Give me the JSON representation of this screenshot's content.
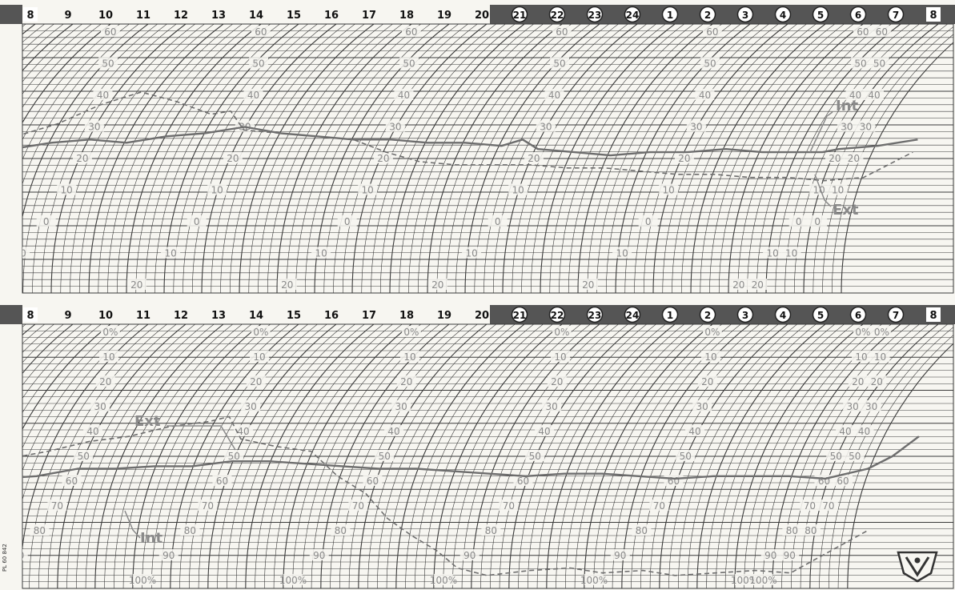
{
  "hours": [
    "8",
    "9",
    "10",
    "11",
    "12",
    "13",
    "14",
    "15",
    "16",
    "17",
    "18",
    "19",
    "20",
    "21",
    "22",
    "23",
    "24",
    "1",
    "2",
    "3",
    "4",
    "5",
    "6",
    "7",
    "8"
  ],
  "colors": {
    "paper": "#f7f6f1",
    "grid": "#3a3a3a",
    "band": "#555555",
    "trace_int": "#6e6e6e",
    "trace_ext": "#6e6e6e",
    "label": "#8a8a8a"
  },
  "footnote": "PL 60 842",
  "logo_icon": "shield-logo-icon",
  "chart_data": [
    {
      "type": "line",
      "scale_labels": [
        "60",
        "50",
        "40",
        "30",
        "20",
        "10",
        "0",
        "10",
        "20"
      ],
      "ylim": [
        -20,
        60
      ],
      "series": [
        {
          "name": "Int",
          "style": "solid",
          "points": [
            [
              0,
              23
            ],
            [
              1,
              25
            ],
            [
              2,
              26
            ],
            [
              3,
              25
            ],
            [
              4,
              27
            ],
            [
              5,
              28
            ],
            [
              6,
              30
            ],
            [
              7,
              28
            ],
            [
              8,
              27
            ],
            [
              9,
              26
            ],
            [
              10,
              26
            ],
            [
              11,
              25
            ],
            [
              12,
              25
            ],
            [
              13,
              24
            ],
            [
              13.5,
              26
            ],
            [
              14,
              23
            ],
            [
              15,
              22
            ],
            [
              16,
              21
            ],
            [
              17,
              22
            ],
            [
              18,
              22
            ],
            [
              19,
              23
            ],
            [
              20,
              22
            ],
            [
              21,
              22
            ],
            [
              21.6,
              22
            ],
            [
              22,
              23
            ],
            [
              23,
              24
            ],
            [
              24,
              26
            ]
          ]
        },
        {
          "name": "Ext",
          "style": "dashed",
          "points": [
            [
              0,
              27
            ],
            [
              1,
              31
            ],
            [
              2,
              37
            ],
            [
              3,
              41
            ],
            [
              4,
              38
            ],
            [
              5,
              34
            ],
            [
              5.5,
              35
            ],
            [
              6,
              29
            ],
            [
              7,
              28
            ],
            [
              8,
              27
            ],
            [
              9,
              26
            ],
            [
              10,
              22
            ],
            [
              11,
              19
            ],
            [
              12,
              18
            ],
            [
              13,
              18
            ],
            [
              14,
              18
            ],
            [
              15,
              17
            ],
            [
              16,
              17
            ],
            [
              17,
              16
            ],
            [
              18,
              15
            ],
            [
              19,
              15
            ],
            [
              20,
              14
            ],
            [
              21,
              14
            ],
            [
              22,
              13
            ],
            [
              23,
              14
            ],
            [
              24,
              22
            ]
          ]
        }
      ],
      "annotations": [
        "Int",
        "Ext"
      ]
    },
    {
      "type": "line",
      "scale_labels": [
        "0%",
        "10",
        "20",
        "30",
        "40",
        "50",
        "60",
        "70",
        "80",
        "90",
        "100%"
      ],
      "ylim": [
        0,
        100
      ],
      "series": [
        {
          "name": "Int",
          "style": "solid",
          "points": [
            [
              0,
              59
            ],
            [
              1,
              58
            ],
            [
              2,
              55
            ],
            [
              3,
              55
            ],
            [
              4,
              54
            ],
            [
              5,
              54
            ],
            [
              6,
              52
            ],
            [
              7,
              52
            ],
            [
              8,
              53
            ],
            [
              9,
              54
            ],
            [
              10,
              55
            ],
            [
              11,
              55
            ],
            [
              12,
              56
            ],
            [
              13,
              57
            ],
            [
              14,
              58
            ],
            [
              15,
              57
            ],
            [
              16,
              57
            ],
            [
              17,
              58
            ],
            [
              18,
              59
            ],
            [
              19,
              58
            ],
            [
              20,
              58
            ],
            [
              21,
              58
            ],
            [
              22,
              59
            ],
            [
              23,
              55
            ],
            [
              23.5,
              50
            ],
            [
              24,
              42
            ]
          ]
        },
        {
          "name": "Ext",
          "style": "dashed",
          "points": [
            [
              0,
              51
            ],
            [
              1,
              48
            ],
            [
              2,
              44
            ],
            [
              3,
              42
            ],
            [
              4,
              38
            ],
            [
              5,
              36
            ],
            [
              5.5,
              34
            ],
            [
              6,
              43
            ],
            [
              7,
              46
            ],
            [
              8,
              48
            ],
            [
              9,
              58
            ],
            [
              10,
              65
            ],
            [
              11,
              75
            ],
            [
              12,
              82
            ],
            [
              13,
              88
            ],
            [
              14,
              95
            ],
            [
              15,
              98
            ],
            [
              16,
              96
            ],
            [
              17,
              95
            ],
            [
              18,
              97
            ],
            [
              19,
              96
            ],
            [
              20,
              98
            ],
            [
              21,
              97
            ],
            [
              22,
              96
            ],
            [
              23,
              97
            ],
            [
              24,
              80
            ]
          ]
        }
      ],
      "annotations": [
        "Ext",
        "Int"
      ]
    }
  ]
}
